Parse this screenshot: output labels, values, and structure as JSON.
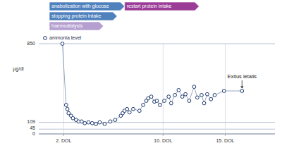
{
  "chart_data": {
    "type": "line",
    "y_label": "µg/dl",
    "x": [
      1.9,
      2.2,
      2.3,
      2.4,
      2.6,
      2.75,
      3.0,
      3.2,
      3.45,
      3.7,
      4.0,
      4.3,
      4.6,
      4.9,
      5.3,
      5.75,
      6.15,
      6.6,
      6.75,
      6.9,
      7.1,
      7.3,
      7.6,
      8.1,
      8.4,
      8.65,
      8.8,
      9.05,
      9.3,
      9.5,
      9.75,
      10.1,
      10.45,
      10.65,
      10.95,
      11.25,
      11.55,
      11.8,
      12.1,
      12.5,
      12.75,
      13.1,
      13.3,
      13.55,
      13.85,
      14.15,
      14.9,
      16.35
    ],
    "series": [
      {
        "name": "ammonia level",
        "color": "#1f3a6e",
        "marker": "circle",
        "line_style": "solid",
        "values": [
          850,
          273,
          234,
          195,
          171,
          148,
          132,
          117,
          117,
          101,
          109,
          101,
          93,
          109,
          93,
          117,
          132,
          171,
          195,
          218,
          234,
          203,
          234,
          218,
          273,
          312,
          335,
          351,
          304,
          312,
          273,
          312,
          351,
          289,
          366,
          413,
          351,
          374,
          312,
          444,
          343,
          366,
          289,
          374,
          327,
          366,
          405,
          405
        ]
      }
    ],
    "xlim": [
      0,
      19
    ],
    "xticks": [
      {
        "value": 2,
        "label": "2. DOL"
      },
      {
        "value": 10,
        "label": "10. DOL"
      },
      {
        "value": 15,
        "label": "15. DOL"
      }
    ],
    "ylim": [
      0,
      850
    ],
    "yticks": [
      0,
      45,
      109,
      850
    ],
    "grid": true,
    "legend": "upper left",
    "phases": [
      [
        {
          "label": "anabolization with glucose",
          "start": 0.85,
          "end": 6.9,
          "color": "#4f81bd"
        },
        {
          "label": "restart protein intake",
          "start": 6.9,
          "end": 12.9,
          "color": "#9b3d97"
        }
      ],
      [
        {
          "label": "stopping protein intake",
          "start": 0.85,
          "end": 6.3,
          "color": "#4f81bd"
        }
      ],
      [
        {
          "label": "haemodialysis",
          "start": 0.85,
          "end": 5.2,
          "color": "#b59fd0"
        }
      ]
    ],
    "annotations": [
      {
        "text": "Exitus letalis",
        "x": 16.35,
        "y": 405
      }
    ]
  }
}
